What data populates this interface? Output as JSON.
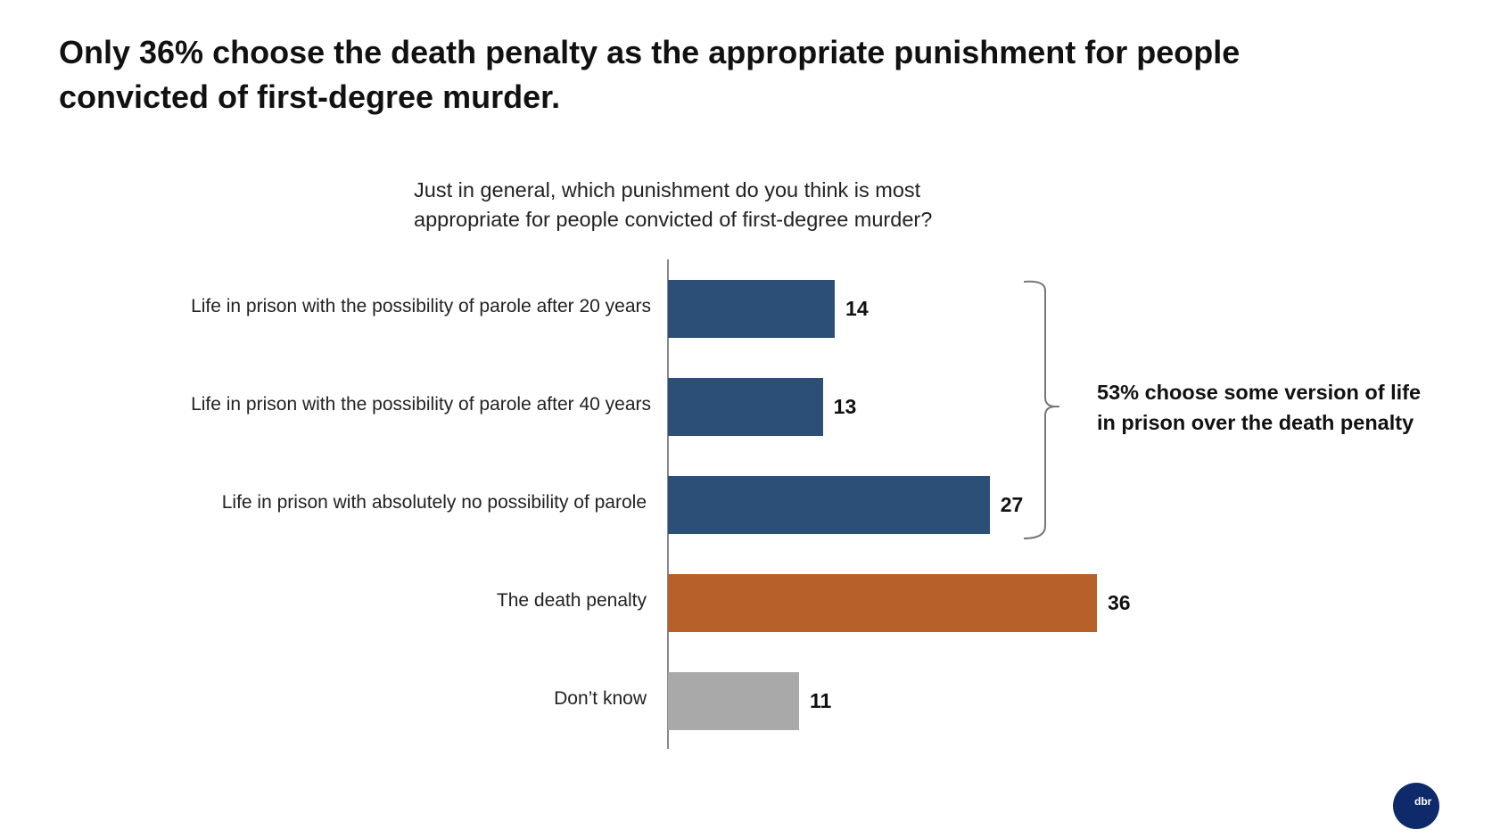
{
  "title": "Only 36% choose the death penalty as the appropriate punishment for people convicted of first-degree murder.",
  "logo_text": "dbr",
  "chart_data": {
    "type": "bar",
    "orientation": "horizontal",
    "title": "Just in general, which punishment do you think is most appropriate for people convicted of first-degree murder?",
    "categories": [
      "Life in prison with the possibility of parole after 20 years",
      "Life in prison with the possibility of parole after 40 years",
      "Life in prison with absolutely no possibility of parole",
      "The death penalty",
      "Don’t know"
    ],
    "values": [
      14,
      13,
      27,
      36,
      11
    ],
    "colors": [
      "#2c4f78",
      "#2c4f78",
      "#2c4f78",
      "#b8602a",
      "#a9a9a9"
    ],
    "annotation": "53% choose some version of life in prison over the death penalty",
    "annotation_lines": [
      "53% choose some version of life",
      "in prison over the death penalty"
    ],
    "xlabel": "",
    "ylabel": "",
    "xlim": [
      0,
      40
    ],
    "grid": false
  }
}
